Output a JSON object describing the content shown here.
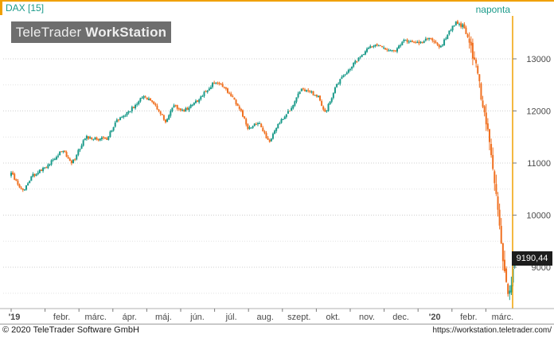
{
  "header": {
    "instrument": "DAX [15]",
    "period": "naponta"
  },
  "watermark": {
    "brand_light": "TeleTrader ",
    "brand_bold": "WorkStation"
  },
  "footer": {
    "copyright": "© 2020 TeleTrader Software GmbH",
    "url": "https://workstation.teletrader.com/"
  },
  "chart_data": {
    "type": "candlestick",
    "instrument": "DAX",
    "interval": "naponta",
    "last_price": 9190.44,
    "last_price_label": "9190,44",
    "ylim": [
      8180,
      13980
    ],
    "y_ticks": [
      9000,
      10000,
      11000,
      12000,
      13000
    ],
    "y_tick_labels": [
      "9000",
      "10000",
      "11000",
      "12000",
      "13000"
    ],
    "x_ticks": [
      {
        "label": "'19",
        "month": 0,
        "bold": true
      },
      {
        "label": "febr.",
        "month": 1
      },
      {
        "label": "márc.",
        "month": 2
      },
      {
        "label": "ápr.",
        "month": 3
      },
      {
        "label": "máj.",
        "month": 4
      },
      {
        "label": "jún.",
        "month": 5
      },
      {
        "label": "júl.",
        "month": 6
      },
      {
        "label": "aug.",
        "month": 7
      },
      {
        "label": "szept.",
        "month": 8
      },
      {
        "label": "okt.",
        "month": 9
      },
      {
        "label": "nov.",
        "month": 10
      },
      {
        "label": "dec.",
        "month": 11
      },
      {
        "label": "'20",
        "month": 12,
        "bold": true
      },
      {
        "label": "febr.",
        "month": 13
      },
      {
        "label": "márc.",
        "month": 14
      }
    ],
    "grid": "horizontal-dotted",
    "colors": {
      "up": "#1a9a8a",
      "down": "#f07020"
    },
    "close_path": [
      [
        0,
        10800
      ],
      [
        0.35,
        10450
      ],
      [
        0.6,
        10750
      ],
      [
        1.0,
        10900
      ],
      [
        1.5,
        11250
      ],
      [
        1.8,
        11000
      ],
      [
        2.2,
        11500
      ],
      [
        2.8,
        11450
      ],
      [
        3.1,
        11800
      ],
      [
        3.5,
        12000
      ],
      [
        3.9,
        12300
      ],
      [
        4.2,
        12150
      ],
      [
        4.55,
        11800
      ],
      [
        4.8,
        12100
      ],
      [
        5.1,
        12000
      ],
      [
        5.5,
        12200
      ],
      [
        6.0,
        12550
      ],
      [
        6.3,
        12450
      ],
      [
        6.75,
        12050
      ],
      [
        7.0,
        11650
      ],
      [
        7.3,
        11800
      ],
      [
        7.6,
        11400
      ],
      [
        7.9,
        11750
      ],
      [
        8.2,
        12000
      ],
      [
        8.55,
        12400
      ],
      [
        9.05,
        12300
      ],
      [
        9.25,
        11950
      ],
      [
        9.6,
        12500
      ],
      [
        10.1,
        12900
      ],
      [
        10.5,
        13200
      ],
      [
        10.8,
        13250
      ],
      [
        11.3,
        13150
      ],
      [
        11.6,
        13350
      ],
      [
        12.0,
        13300
      ],
      [
        12.4,
        13400
      ],
      [
        12.65,
        13200
      ],
      [
        12.85,
        13450
      ],
      [
        13.1,
        13700
      ],
      [
        13.35,
        13620
      ],
      [
        13.75,
        12800
      ],
      [
        13.9,
        12100
      ],
      [
        14.05,
        11650
      ],
      [
        14.3,
        10450
      ],
      [
        14.5,
        9100
      ],
      [
        14.62,
        8600
      ],
      [
        14.72,
        8450
      ],
      [
        14.85,
        9190.44
      ]
    ]
  }
}
